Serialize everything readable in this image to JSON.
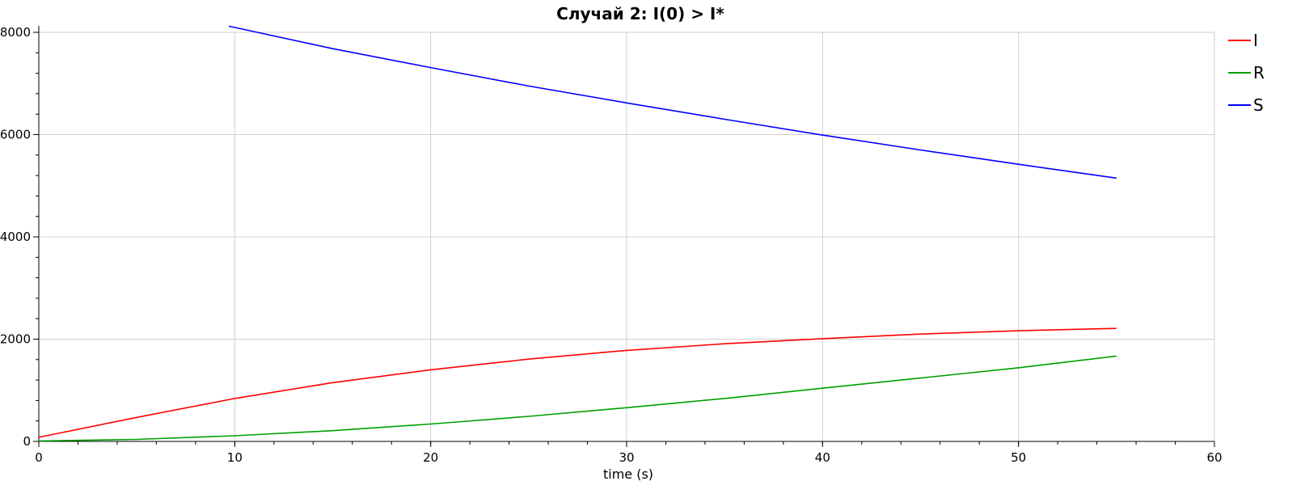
{
  "chart_data": {
    "type": "line",
    "title": "Случай 2: I(0) > I*",
    "xlabel": "time (s)",
    "ylabel": "",
    "xlim": [
      0,
      60
    ],
    "ylim": [
      0,
      8000
    ],
    "x_ticks": [
      0,
      10,
      20,
      30,
      40,
      50,
      60
    ],
    "y_ticks": [
      0,
      2000,
      4000,
      6000,
      8000
    ],
    "grid": true,
    "legend_position": "top-right",
    "series": [
      {
        "name": "I",
        "color": "#ff0000",
        "x": [
          0,
          5,
          10,
          15,
          20,
          25,
          30,
          35,
          40,
          45,
          50,
          55
        ],
        "y": [
          80,
          470,
          840,
          1150,
          1400,
          1610,
          1780,
          1910,
          2010,
          2100,
          2165,
          2210
        ]
      },
      {
        "name": "R",
        "color": "#00a000",
        "x": [
          0,
          5,
          10,
          15,
          20,
          25,
          30,
          35,
          40,
          45,
          50,
          55
        ],
        "y": [
          10,
          40,
          110,
          210,
          340,
          490,
          660,
          840,
          1040,
          1240,
          1440,
          1670
        ]
      },
      {
        "name": "S",
        "color": "#0000ff",
        "x": [
          9.7,
          15,
          20,
          25,
          30,
          35,
          40,
          45,
          50,
          55
        ],
        "y": [
          8120,
          7680,
          7310,
          6950,
          6620,
          6300,
          5990,
          5700,
          5420,
          5150
        ]
      }
    ]
  }
}
